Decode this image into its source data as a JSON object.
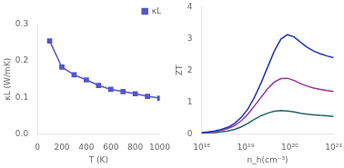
{
  "chart_data": [
    {
      "type": "line",
      "x_label": "T (K)",
      "y_label": "κL (W/mK)",
      "x": [
        100,
        200,
        300,
        400,
        500,
        600,
        700,
        800,
        900,
        1000
      ],
      "series": [
        {
          "name": "κL",
          "color": "#5555cc",
          "marker": "square",
          "values": [
            0.255,
            0.183,
            0.162,
            0.148,
            0.133,
            0.122,
            0.116,
            0.11,
            0.103,
            0.098
          ]
        }
      ],
      "xlim": [
        0,
        1000
      ],
      "ylim": [
        0,
        0.3
      ],
      "xticks": [
        0,
        200,
        400,
        600,
        800,
        1000
      ],
      "yticks": [
        {
          "value": 0,
          "label": "0.0"
        },
        0.1,
        0.2,
        0.3
      ],
      "legend": "upper right",
      "grid": false
    },
    {
      "type": "line",
      "x_label": "n_h(cm⁻³)",
      "y_label": "ZT",
      "log": "x",
      "x": [
        1e+18,
        1.4125375446e+18,
        1.995262315e+18,
        2.8183829313e+18,
        3.9810717055e+18,
        5.6234132519e+18,
        7.9432823472e+18,
        1.1220184543e+19,
        1.5848931925e+19,
        2.2387211385e+19,
        3.1622776602e+19,
        4.4668359215e+19,
        6.3095734448e+19,
        8.9125093813e+19,
        1.2589254118e+20,
        1.77827941e+20,
        2.5118864315e+20,
        3.5481338923e+20,
        5.0118723363e+20,
        7.0794578438e+20,
        1e+21
      ],
      "series": [
        {
          "color": "#2233bb",
          "values": [
            0.04,
            0.06,
            0.09,
            0.14,
            0.21,
            0.33,
            0.52,
            0.78,
            1.15,
            1.6,
            2.1,
            2.6,
            2.98,
            3.12,
            3.05,
            2.88,
            2.72,
            2.6,
            2.52,
            2.45,
            2.4
          ]
        },
        {
          "color": "#993399",
          "values": [
            0.03,
            0.05,
            0.07,
            0.11,
            0.17,
            0.26,
            0.41,
            0.62,
            0.88,
            1.15,
            1.42,
            1.63,
            1.74,
            1.75,
            1.68,
            1.58,
            1.5,
            1.44,
            1.4,
            1.36,
            1.33
          ]
        },
        {
          "color": "#226666",
          "values": [
            0.02,
            0.03,
            0.04,
            0.06,
            0.09,
            0.14,
            0.22,
            0.33,
            0.46,
            0.57,
            0.65,
            0.71,
            0.73,
            0.72,
            0.69,
            0.65,
            0.62,
            0.6,
            0.58,
            0.57,
            0.55
          ]
        }
      ],
      "xlim": [
        1e+18,
        1e+21
      ],
      "ylim": [
        0,
        4
      ],
      "xticks": [
        {
          "value": 1e+18,
          "label": "10¹⁸"
        },
        {
          "value": 1e+19,
          "label": "10¹⁹"
        },
        {
          "value": 1e+20,
          "label": "10²⁰"
        },
        {
          "value": 1e+21,
          "label": "10²¹"
        }
      ],
      "yticks": [
        0,
        1,
        2,
        3,
        4
      ],
      "grid": false
    }
  ]
}
